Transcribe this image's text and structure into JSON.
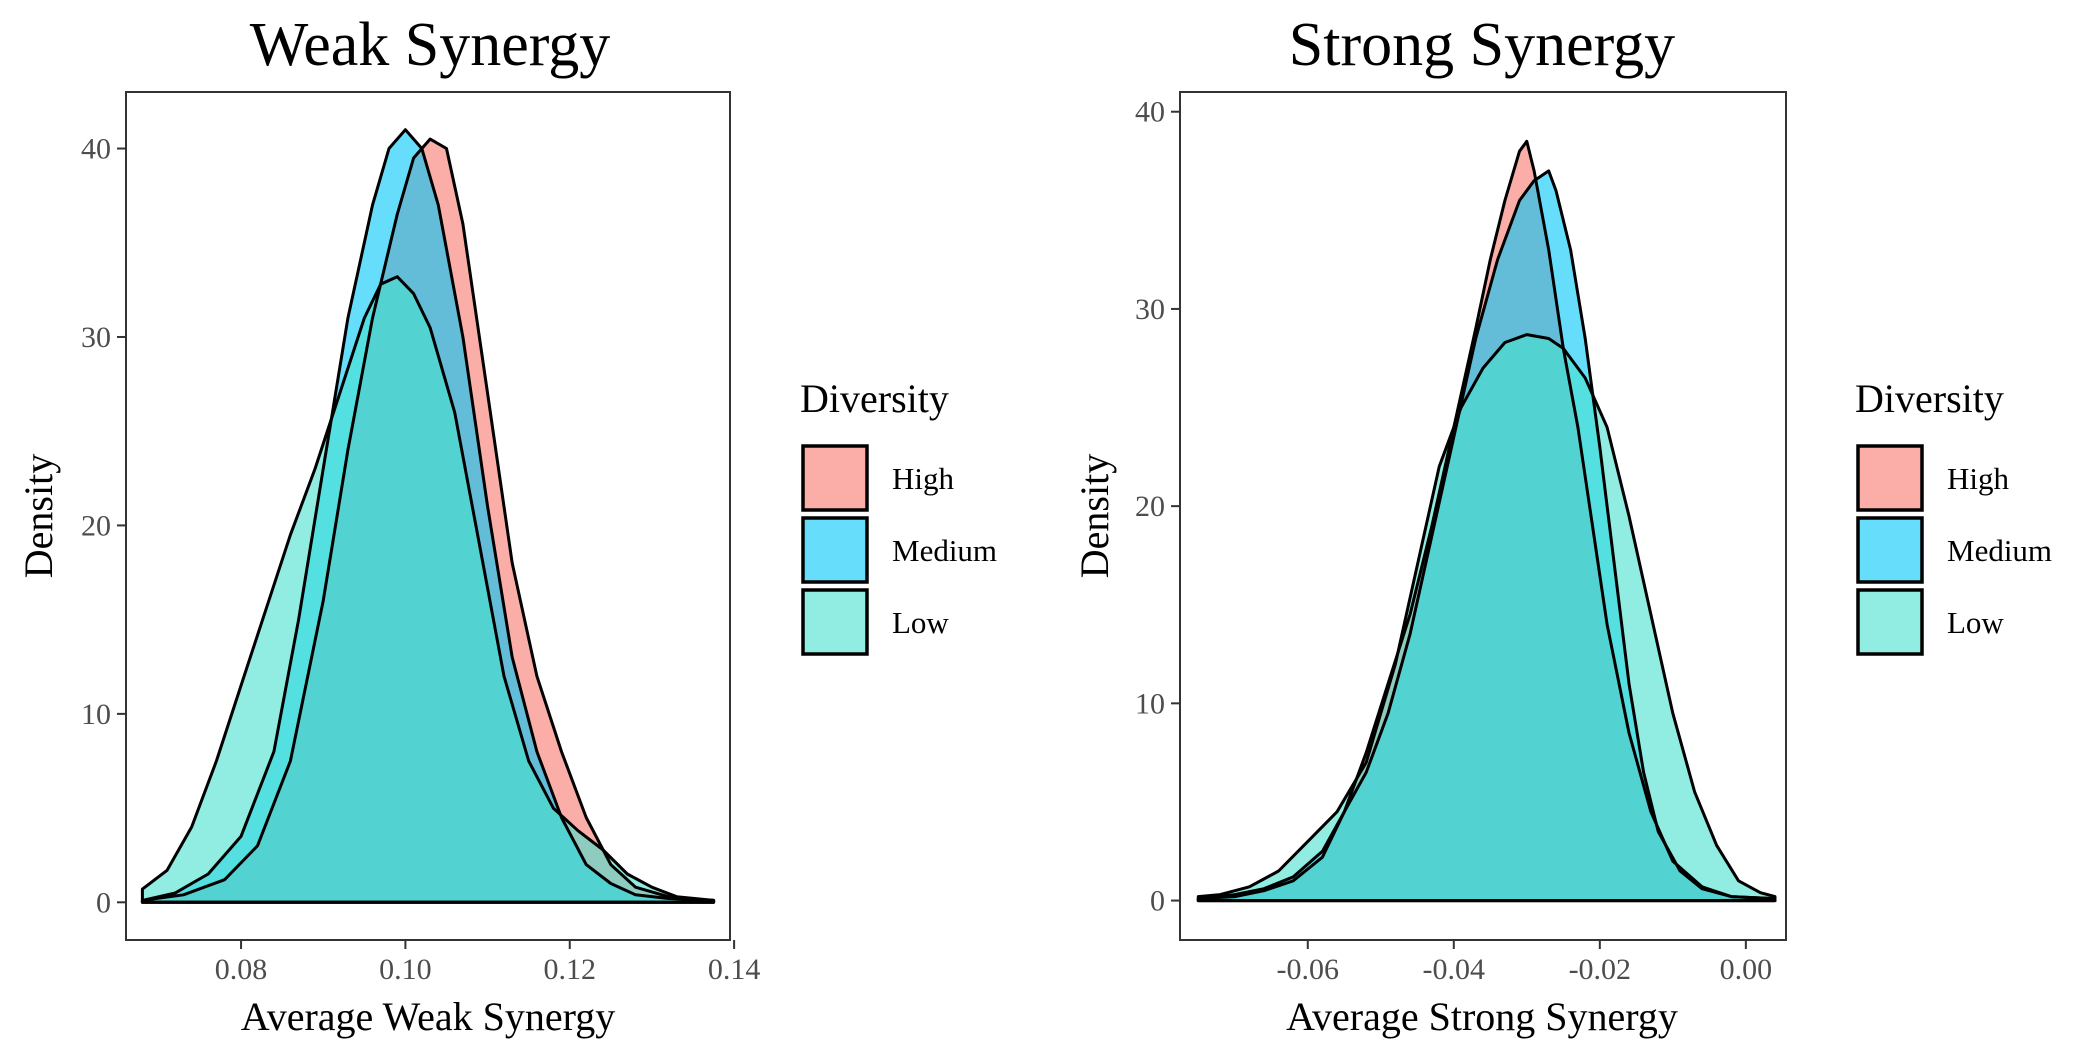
{
  "chart_data": [
    {
      "type": "area",
      "title": "Weak Synergy",
      "xlabel": "Average Weak Synergy",
      "ylabel": "Density",
      "xlim": [
        0.066,
        0.1395
      ],
      "ylim": [
        -2,
        43
      ],
      "xticks": [
        "0.08",
        "0.10",
        "0.12",
        "0.14"
      ],
      "xtick_values": [
        0.08,
        0.1,
        0.12,
        0.14
      ],
      "yticks": [
        "0",
        "10",
        "20",
        "30",
        "40"
      ],
      "ytick_values": [
        0,
        10,
        20,
        30,
        40
      ],
      "grid": false,
      "legend": {
        "title": "Diversity",
        "placement": "right",
        "entries": [
          "High",
          "Medium",
          "Low"
        ]
      },
      "series": [
        {
          "name": "High",
          "color": "#F8766D",
          "x": [
            0.068,
            0.073,
            0.078,
            0.082,
            0.086,
            0.09,
            0.093,
            0.096,
            0.099,
            0.101,
            0.103,
            0.105,
            0.107,
            0.11,
            0.113,
            0.116,
            0.119,
            0.122,
            0.125,
            0.128,
            0.132,
            0.135,
            0.1375
          ],
          "y": [
            0.1,
            0.4,
            1.2,
            3.0,
            7.5,
            16.0,
            24.0,
            31.0,
            36.5,
            39.5,
            40.5,
            40.0,
            36.0,
            27.0,
            18.0,
            12.0,
            8.0,
            4.5,
            2.0,
            0.8,
            0.3,
            0.15,
            0.1
          ]
        },
        {
          "name": "Medium",
          "color": "#00C8F8",
          "x": [
            0.068,
            0.072,
            0.076,
            0.08,
            0.084,
            0.087,
            0.09,
            0.093,
            0.096,
            0.098,
            0.1,
            0.102,
            0.104,
            0.107,
            0.11,
            0.113,
            0.116,
            0.119,
            0.122,
            0.125,
            0.128,
            0.132,
            0.1375
          ],
          "y": [
            0.1,
            0.5,
            1.5,
            3.5,
            8.0,
            15.0,
            23.0,
            31.0,
            37.0,
            40.0,
            41.0,
            40.0,
            37.0,
            30.0,
            21.0,
            13.0,
            8.0,
            4.5,
            2.0,
            1.0,
            0.4,
            0.2,
            0.1
          ]
        },
        {
          "name": "Low",
          "color": "#48E0CF",
          "x": [
            0.068,
            0.071,
            0.074,
            0.077,
            0.08,
            0.083,
            0.086,
            0.089,
            0.092,
            0.095,
            0.097,
            0.099,
            0.101,
            0.103,
            0.106,
            0.109,
            0.112,
            0.115,
            0.118,
            0.121,
            0.124,
            0.127,
            0.13,
            0.133,
            0.1375
          ],
          "y": [
            0.7,
            1.7,
            4.0,
            7.5,
            11.5,
            15.5,
            19.5,
            23.0,
            27.0,
            31.0,
            32.8,
            33.2,
            32.3,
            30.5,
            26.0,
            19.0,
            12.0,
            7.5,
            5.0,
            3.8,
            2.8,
            1.5,
            0.8,
            0.3,
            0.1
          ]
        }
      ]
    },
    {
      "type": "area",
      "title": "Strong Synergy",
      "xlabel": "Average Strong Synergy",
      "ylabel": "Density",
      "xlim": [
        -0.0775,
        0.0055
      ],
      "ylim": [
        -2,
        41
      ],
      "xticks": [
        "-0.06",
        "-0.04",
        "-0.02",
        "0.00"
      ],
      "xtick_values": [
        -0.06,
        -0.04,
        -0.02,
        0.0
      ],
      "yticks": [
        "0",
        "10",
        "20",
        "30",
        "40"
      ],
      "ytick_values": [
        0,
        10,
        20,
        30,
        40
      ],
      "grid": false,
      "legend": {
        "title": "Diversity",
        "placement": "right",
        "entries": [
          "High",
          "Medium",
          "Low"
        ]
      },
      "series": [
        {
          "name": "High",
          "color": "#F8766D",
          "x": [
            -0.075,
            -0.07,
            -0.066,
            -0.062,
            -0.058,
            -0.055,
            -0.052,
            -0.049,
            -0.046,
            -0.043,
            -0.04,
            -0.037,
            -0.035,
            -0.033,
            -0.031,
            -0.03,
            -0.029,
            -0.027,
            -0.025,
            -0.023,
            -0.021,
            -0.019,
            -0.016,
            -0.013,
            -0.01,
            -0.006,
            -0.002,
            0.004
          ],
          "y": [
            0.1,
            0.2,
            0.5,
            1.0,
            2.2,
            4.5,
            7.5,
            11.0,
            14.5,
            19.0,
            24.0,
            29.0,
            32.5,
            35.5,
            38.0,
            38.5,
            37.0,
            33.0,
            28.0,
            24.0,
            19.0,
            14.0,
            8.5,
            4.5,
            2.0,
            0.7,
            0.2,
            0.1
          ]
        },
        {
          "name": "Medium",
          "color": "#00C8F8",
          "x": [
            -0.075,
            -0.07,
            -0.066,
            -0.062,
            -0.058,
            -0.055,
            -0.052,
            -0.049,
            -0.046,
            -0.043,
            -0.04,
            -0.037,
            -0.034,
            -0.031,
            -0.029,
            -0.027,
            -0.026,
            -0.024,
            -0.022,
            -0.02,
            -0.018,
            -0.016,
            -0.014,
            -0.012,
            -0.009,
            -0.006,
            -0.002,
            0.004
          ],
          "y": [
            0.1,
            0.3,
            0.6,
            1.2,
            2.5,
            4.5,
            6.5,
            9.5,
            13.5,
            18.5,
            23.5,
            28.5,
            32.5,
            35.5,
            36.5,
            37.0,
            36.0,
            33.0,
            28.5,
            23.0,
            17.0,
            11.0,
            6.5,
            3.5,
            1.5,
            0.6,
            0.2,
            0.1
          ]
        },
        {
          "name": "Low",
          "color": "#48E0CF",
          "x": [
            -0.075,
            -0.072,
            -0.068,
            -0.064,
            -0.06,
            -0.056,
            -0.052,
            -0.048,
            -0.045,
            -0.042,
            -0.039,
            -0.036,
            -0.033,
            -0.03,
            -0.027,
            -0.025,
            -0.022,
            -0.019,
            -0.016,
            -0.013,
            -0.01,
            -0.007,
            -0.004,
            -0.001,
            0.002,
            0.004
          ],
          "y": [
            0.2,
            0.3,
            0.7,
            1.5,
            3.0,
            4.5,
            7.0,
            12.0,
            17.0,
            22.0,
            25.0,
            27.0,
            28.3,
            28.7,
            28.5,
            28.0,
            26.5,
            24.0,
            19.5,
            14.5,
            9.5,
            5.5,
            2.8,
            1.0,
            0.4,
            0.2
          ]
        }
      ]
    }
  ]
}
